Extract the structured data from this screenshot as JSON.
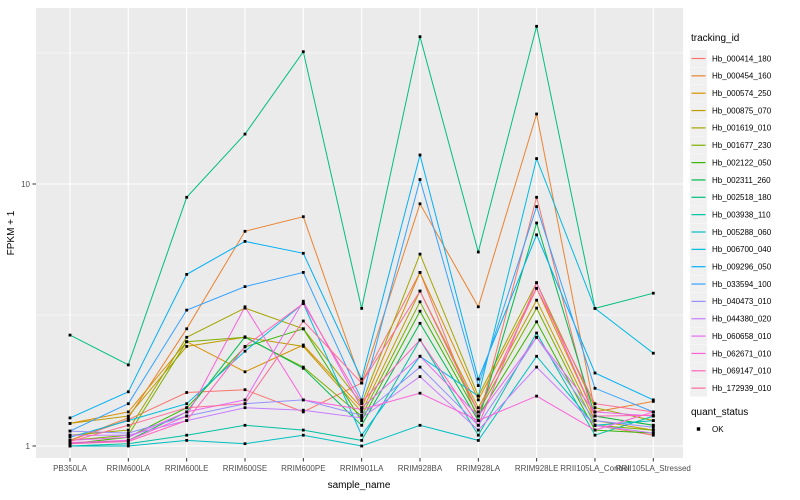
{
  "chart_data": {
    "type": "line",
    "title": "",
    "xlabel": "sample_name",
    "ylabel": "FPKM + 1",
    "y_scale": "log10",
    "y_tick_labels": [
      "1",
      "10"
    ],
    "y_ticks": [
      1,
      10
    ],
    "y_minor_ticks": [
      3.1623,
      31.623
    ],
    "ylim": [
      0.93,
      47
    ],
    "grid": true,
    "legend_position": "right",
    "legend_title": "tracking_id",
    "quant_legend": {
      "title": "quant_status",
      "items": [
        {
          "label": "OK",
          "color": "#000000"
        }
      ]
    },
    "x_categories": [
      "PB350LA",
      "RRIM600LA",
      "RRIM600LE",
      "RRIM600SE",
      "RRIM600PE",
      "RRIM901LA",
      "RRIM928BA",
      "RRIM928LA",
      "RRIM928LE",
      "RRII105LA_Control",
      "RRII105LA_Stressed"
    ],
    "point_shape": "small black square (quant_status OK)",
    "panel_color": "#EBEBEB",
    "gridline_color": "#FFFFFF",
    "axis_text_color": "#4D4D4D",
    "series": [
      {
        "name": "Hb_000414_180",
        "color": "#F8766D",
        "values": [
          1.05,
          1.26,
          1.6,
          1.64,
          1.35,
          1.74,
          4.6,
          1.25,
          8.9,
          1.2,
          1.1
        ]
      },
      {
        "name": "Hb_000454_160",
        "color": "#EA8331",
        "values": [
          1.05,
          1.28,
          2.8,
          6.6,
          7.5,
          1.74,
          8.4,
          3.4,
          18.5,
          1.35,
          1.48
        ]
      },
      {
        "name": "Hb_000574_250",
        "color": "#D89000",
        "values": [
          1.22,
          1.35,
          2.5,
          1.92,
          2.43,
          1.4,
          4.6,
          1.5,
          4.0,
          1.3,
          1.2
        ]
      },
      {
        "name": "Hb_000875_070",
        "color": "#C09B00",
        "values": [
          1.22,
          1.3,
          2.4,
          2.6,
          2.4,
          1.35,
          3.9,
          1.4,
          3.6,
          1.25,
          1.15
        ]
      },
      {
        "name": "Hb_001619_010",
        "color": "#A3A500",
        "values": [
          1.1,
          1.15,
          2.6,
          3.36,
          2.8,
          1.45,
          5.4,
          1.55,
          4.2,
          1.4,
          1.25
        ]
      },
      {
        "name": "Hb_001677_230",
        "color": "#7CAE00",
        "values": [
          1.05,
          1.1,
          2.5,
          2.6,
          2.0,
          1.3,
          3.55,
          1.35,
          3.36,
          1.2,
          1.15
        ]
      },
      {
        "name": "Hb_002122_050",
        "color": "#39B600",
        "values": [
          1.02,
          1.08,
          1.4,
          2.39,
          2.8,
          1.25,
          3.27,
          1.3,
          2.98,
          1.15,
          1.12
        ]
      },
      {
        "name": "Hb_002311_260",
        "color": "#00BB4E",
        "values": [
          1.02,
          1.05,
          1.35,
          2.61,
          1.98,
          1.2,
          2.94,
          1.25,
          7.1,
          1.3,
          1.2
        ]
      },
      {
        "name": "Hb_002518_180",
        "color": "#00BF7D",
        "values": [
          2.65,
          2.04,
          8.9,
          15.5,
          32.0,
          3.35,
          36.5,
          5.5,
          40.0,
          3.35,
          3.83
        ]
      },
      {
        "name": "Hb_003938_110",
        "color": "#00C1A3",
        "values": [
          1.0,
          1.02,
          1.1,
          1.2,
          1.15,
          1.05,
          2.54,
          1.1,
          2.7,
          1.1,
          1.3
        ]
      },
      {
        "name": "Hb_005288_060",
        "color": "#00BFC4",
        "values": [
          1.0,
          1.0,
          1.05,
          1.02,
          1.1,
          1.0,
          1.2,
          1.05,
          2.2,
          1.2,
          1.25
        ]
      },
      {
        "name": "Hb_006700_040",
        "color": "#00BAE0",
        "values": [
          1.08,
          1.25,
          1.45,
          2.3,
          3.5,
          1.1,
          2.2,
          1.55,
          12.5,
          3.35,
          2.26
        ]
      },
      {
        "name": "Hb_009296_050",
        "color": "#00B0F6",
        "values": [
          1.28,
          1.61,
          4.52,
          6.04,
          5.44,
          1.8,
          12.9,
          1.8,
          6.4,
          1.9,
          1.5
        ]
      },
      {
        "name": "Hb_033594_100",
        "color": "#35A2FF",
        "values": [
          1.14,
          1.45,
          3.3,
          4.06,
          4.6,
          1.5,
          10.4,
          1.7,
          8.2,
          1.66,
          1.35
        ]
      },
      {
        "name": "Hb_040473_010",
        "color": "#9590FF",
        "values": [
          1.14,
          1.12,
          1.3,
          1.45,
          1.5,
          1.31,
          2.0,
          1.2,
          2.6,
          1.25,
          1.18
        ]
      },
      {
        "name": "Hb_044380_020",
        "color": "#C77CFF",
        "values": [
          1.1,
          1.1,
          1.25,
          1.4,
          1.37,
          1.28,
          1.84,
          1.15,
          2.0,
          1.2,
          1.12
        ]
      },
      {
        "name": "Hb_060658_010",
        "color": "#E76BF3",
        "values": [
          1.05,
          1.08,
          1.35,
          1.5,
          3.57,
          1.4,
          2.2,
          1.3,
          2.6,
          1.35,
          1.3
        ]
      },
      {
        "name": "Hb_062671_010",
        "color": "#FA62DB",
        "values": [
          1.03,
          1.05,
          1.3,
          3.4,
          1.5,
          1.38,
          1.59,
          1.25,
          1.55,
          1.15,
          1.35
        ]
      },
      {
        "name": "Hb_069147_010",
        "color": "#FF62BC",
        "values": [
          1.02,
          1.04,
          1.25,
          2.4,
          3.5,
          1.47,
          2.54,
          1.2,
          4.2,
          1.3,
          1.31
        ]
      },
      {
        "name": "Hb_172939_010",
        "color": "#FF6A98",
        "values": [
          1.04,
          1.2,
          1.4,
          1.45,
          3.0,
          1.74,
          3.9,
          1.35,
          4.0,
          1.45,
          1.35
        ]
      }
    ]
  }
}
